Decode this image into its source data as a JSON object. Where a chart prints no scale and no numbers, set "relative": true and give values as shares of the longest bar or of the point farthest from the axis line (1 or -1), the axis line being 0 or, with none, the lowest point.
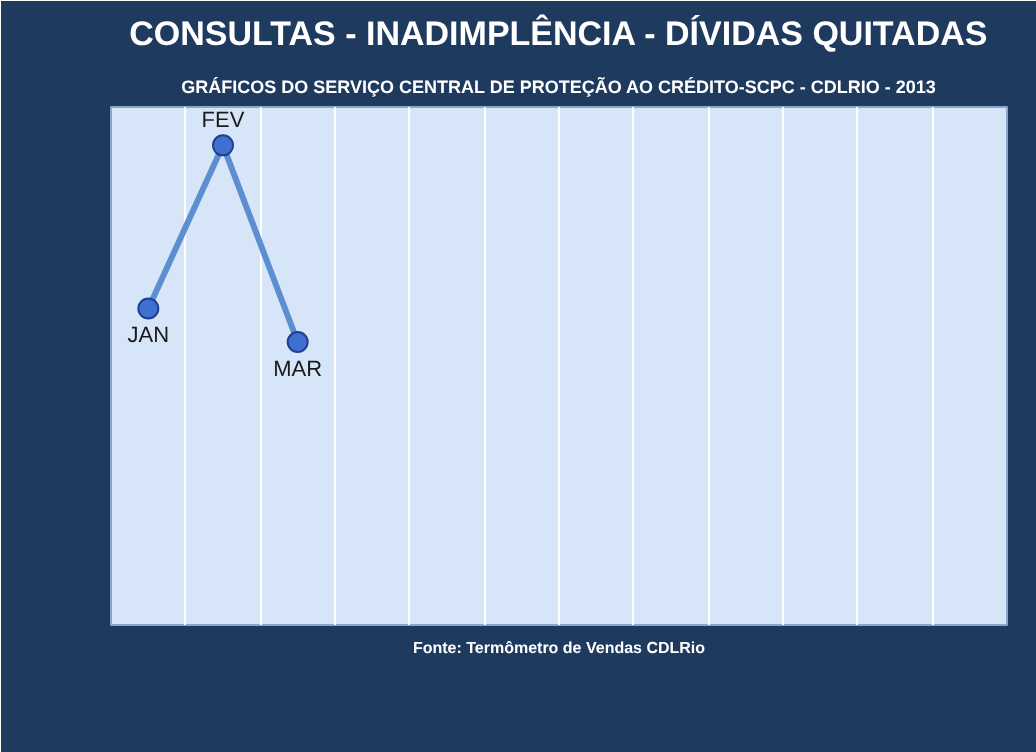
{
  "chart_data": {
    "type": "line",
    "title": "CONSULTAS - INADIMPLÊNCIA - DÍVIDAS QUITADAS",
    "subtitle": "GRÁFICOS DO SERVIÇO CENTRAL DE PROTEÇÃO AO CRÉDITO-SCPC - CDLRIO - 2013",
    "categories": [
      "JAN",
      "FEV",
      "MAR",
      null,
      null,
      null,
      null,
      null,
      null,
      null,
      null,
      null
    ],
    "series": [
      {
        "color": "#5b8fd1",
        "values": [
          0.66,
          1,
          0.59,
          null,
          null,
          null,
          null,
          null,
          null,
          null,
          null,
          null
        ]
      }
    ],
    "relative": true,
    "grid": "x",
    "marker": "circle",
    "annotations": [
      "Fonte: Termômetro de Vendas CDLRio"
    ]
  }
}
